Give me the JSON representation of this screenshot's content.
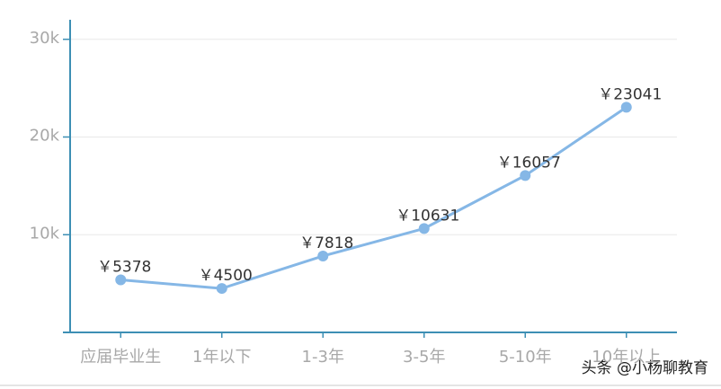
{
  "chart_data": {
    "type": "line",
    "categories": [
      "应届毕业生",
      "1年以下",
      "1-3年",
      "3-5年",
      "5-10年",
      "10年以上"
    ],
    "series": [
      {
        "color": "#85b7e6",
        "values": [
          5378,
          4500,
          7818,
          10631,
          16057,
          23041
        ],
        "value_labels": [
          "￥5378",
          "￥4500",
          "￥7818",
          "￥10631",
          "￥16057",
          "￥23041"
        ]
      }
    ],
    "ylim": [
      0,
      32000
    ],
    "yticks": [
      {
        "value": 10000,
        "label": "10k"
      },
      {
        "value": 20000,
        "label": "20k"
      },
      {
        "value": 30000,
        "label": "30k"
      }
    ],
    "grid": true,
    "watermark": "头条 @小杨聊教育"
  }
}
